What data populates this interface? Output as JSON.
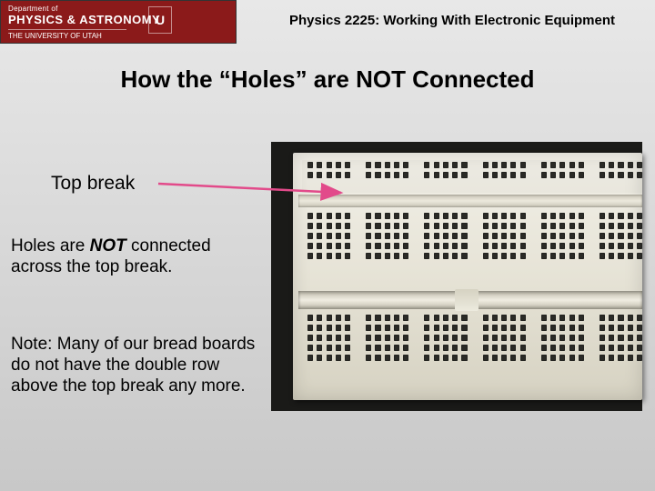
{
  "banner": {
    "dept": "Department of",
    "main": "PHYSICS & ASTRONOMY",
    "univ": "THE UNIVERSITY OF UTAH",
    "glyph": "U"
  },
  "course_title": "Physics 2225: Working With Electronic Equipment",
  "slide_title": "How the “Holes” are NOT Connected",
  "label_top_break": "Top break",
  "body1_pre": "Holes are ",
  "body1_not": "NOT",
  "body1_post": " connected across the top break.",
  "body2": "Note: Many of our bread boards do not have the double row above the top break any more.",
  "arrow_color": "#e24a8a",
  "breadboard": {
    "rail_rows": 2,
    "field_rows": 5,
    "columns_per_group": 5,
    "groups_rail": 6,
    "groups_field_visible": 6,
    "hole_color": "#2a2a26",
    "board_bg": "#e6e3d6",
    "surround_bg": "#1a1a18"
  }
}
